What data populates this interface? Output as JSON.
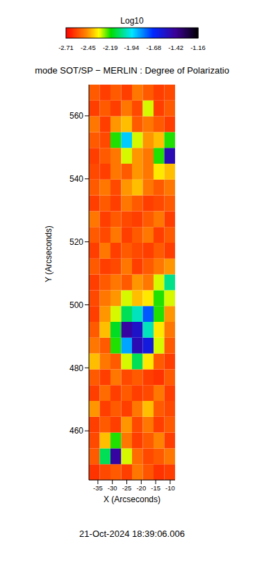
{
  "chart_data": {
    "type": "heatmap",
    "title": "mode SOT/SP − MERLIN : Degree of Polarizatio",
    "annotation": "21-Oct-2024 18:39:06.006",
    "xlabel": "X (Arcseconds)",
    "ylabel": "Y (Arcseconds)",
    "xlim": [
      -38.1,
      -8.3
    ],
    "ylim": [
      444.4,
      569.9
    ],
    "xticks": [
      -35,
      -30,
      -25,
      -20,
      -15,
      -10
    ],
    "yticks": [
      460,
      480,
      500,
      520,
      540,
      560
    ],
    "colorbar_label": "Log10",
    "colorbar_range": [
      -2.71,
      -1.16
    ],
    "colorbar_ticks": [
      -2.71,
      -2.45,
      -2.19,
      -1.94,
      -1.68,
      -1.42,
      -1.16
    ],
    "x": [
      -36.24,
      -32.51,
      -28.79,
      -25.06,
      -21.34,
      -17.61,
      -13.89,
      -10.16
    ],
    "y": [
      446.91,
      451.93,
      456.95,
      461.97,
      466.99,
      472.01,
      477.03,
      482.05,
      487.07,
      492.09,
      497.11,
      502.13,
      507.15,
      512.17,
      517.19,
      522.21,
      527.23,
      532.25,
      537.27,
      542.29,
      547.31,
      552.33,
      557.35,
      562.37,
      567.39
    ],
    "values": [
      [
        -2.62,
        -2.58,
        -2.55,
        -2.6,
        -2.5,
        -2.56,
        -2.62,
        -2.6
      ],
      [
        -2.55,
        -2.1,
        -1.45,
        -2.3,
        -2.52,
        -2.58,
        -2.55,
        -2.5
      ],
      [
        -2.58,
        -2.4,
        -2.2,
        -2.5,
        -2.6,
        -2.55,
        -2.48,
        -2.6
      ],
      [
        -2.6,
        -2.55,
        -2.6,
        -2.45,
        -2.58,
        -2.5,
        -2.6,
        -2.55
      ],
      [
        -2.45,
        -2.6,
        -2.55,
        -2.6,
        -2.5,
        -2.4,
        -2.55,
        -2.58
      ],
      [
        -2.6,
        -2.52,
        -2.6,
        -2.55,
        -2.6,
        -2.58,
        -2.5,
        -2.6
      ],
      [
        -2.55,
        -2.6,
        -2.5,
        -2.58,
        -2.55,
        -2.6,
        -2.62,
        -2.55
      ],
      [
        -2.4,
        -2.5,
        -2.55,
        -2.3,
        -2.1,
        -2.35,
        -2.55,
        -2.6
      ],
      [
        -2.5,
        -2.55,
        -2.2,
        -1.85,
        -1.5,
        -1.6,
        -2.3,
        -2.55
      ],
      [
        -2.55,
        -2.4,
        -2.15,
        -1.45,
        -1.55,
        -2.0,
        -2.35,
        -2.5
      ],
      [
        -2.6,
        -2.45,
        -2.3,
        -2.1,
        -2.0,
        -1.75,
        -2.2,
        -2.45
      ],
      [
        -2.58,
        -2.5,
        -2.45,
        -2.3,
        -2.4,
        -2.35,
        -2.2,
        -2.3
      ],
      [
        -2.6,
        -2.55,
        -2.5,
        -2.55,
        -2.45,
        -2.5,
        -2.3,
        -2.05
      ],
      [
        -2.55,
        -2.6,
        -2.58,
        -2.5,
        -2.6,
        -2.55,
        -2.5,
        -2.45
      ],
      [
        -2.6,
        -2.5,
        -2.6,
        -2.55,
        -2.58,
        -2.6,
        -2.55,
        -2.6
      ],
      [
        -2.55,
        -2.58,
        -2.5,
        -2.6,
        -2.55,
        -2.5,
        -2.6,
        -2.55
      ],
      [
        -2.5,
        -2.6,
        -2.55,
        -2.58,
        -2.6,
        -2.55,
        -2.5,
        -2.6
      ],
      [
        -2.6,
        -2.55,
        -2.6,
        -2.5,
        -2.55,
        -2.6,
        -2.58,
        -2.55
      ],
      [
        -2.55,
        -2.5,
        -2.58,
        -2.45,
        -2.4,
        -2.5,
        -2.55,
        -2.5
      ],
      [
        -2.58,
        -2.6,
        -2.5,
        -2.55,
        -2.45,
        -2.5,
        -2.35,
        -2.4
      ],
      [
        -2.6,
        -2.55,
        -2.5,
        -2.3,
        -2.45,
        -2.5,
        -2.2,
        -1.5
      ],
      [
        -2.55,
        -2.58,
        -2.2,
        -1.9,
        -2.3,
        -2.45,
        -2.4,
        -2.2
      ],
      [
        -2.5,
        -2.6,
        -2.45,
        -2.4,
        -2.55,
        -2.5,
        -2.55,
        -2.6
      ],
      [
        -2.6,
        -2.55,
        -2.6,
        -2.5,
        -2.58,
        -2.3,
        -2.6,
        -2.55
      ],
      [
        -2.55,
        -2.6,
        -2.55,
        -2.6,
        -2.5,
        -2.55,
        -2.6,
        -2.58
      ]
    ]
  }
}
